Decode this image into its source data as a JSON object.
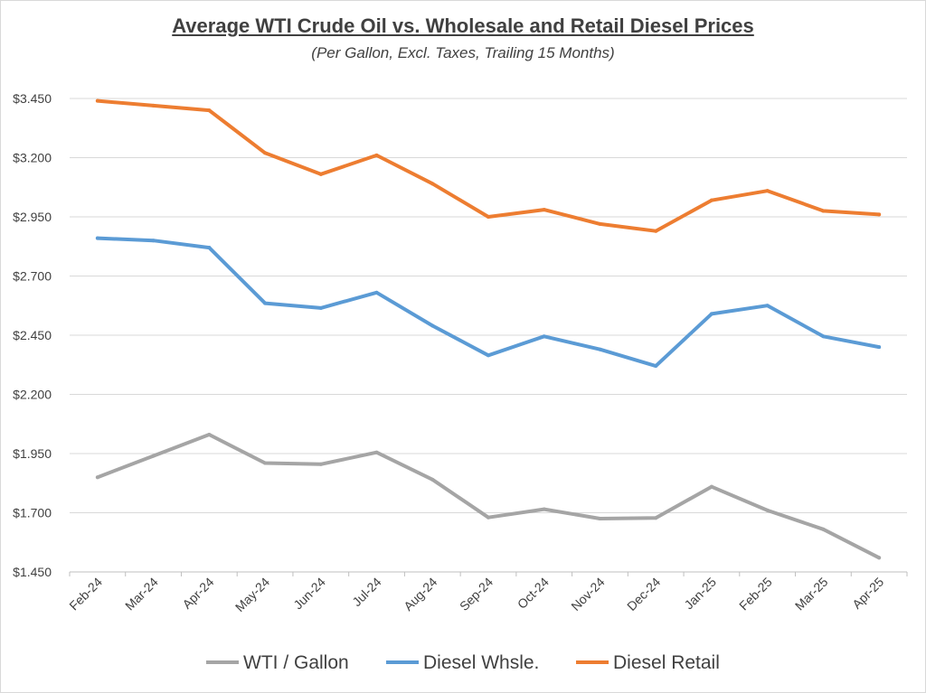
{
  "chart_data": {
    "type": "line",
    "title": "Average WTI Crude Oil vs. Wholesale and Retail Diesel Prices",
    "subtitle": "(Per Gallon, Excl. Taxes, Trailing 15 Months)",
    "categories": [
      "Feb-24",
      "Mar-24",
      "Apr-24",
      "May-24",
      "Jun-24",
      "Jul-24",
      "Aug-24",
      "Sep-24",
      "Oct-24",
      "Nov-24",
      "Dec-24",
      "Jan-25",
      "Feb-25",
      "Mar-25",
      "Apr-25"
    ],
    "yticks": [
      "$1.450",
      "$1.700",
      "$1.950",
      "$2.200",
      "$2.450",
      "$2.700",
      "$2.950",
      "$3.200",
      "$3.450"
    ],
    "ylim": [
      1.45,
      3.45
    ],
    "grid": true,
    "legend_position": "bottom",
    "series": [
      {
        "name": "WTI / Gallon",
        "color": "#a5a5a5",
        "values": [
          1.85,
          1.94,
          2.03,
          1.91,
          1.905,
          1.955,
          1.84,
          1.68,
          1.715,
          1.675,
          1.678,
          1.81,
          1.71,
          1.63,
          1.51
        ]
      },
      {
        "name": "Diesel Whsle.",
        "color": "#5b9bd5",
        "values": [
          2.86,
          2.85,
          2.82,
          2.585,
          2.565,
          2.63,
          2.49,
          2.365,
          2.445,
          2.39,
          2.32,
          2.54,
          2.575,
          2.445,
          2.4
        ]
      },
      {
        "name": "Diesel Retail",
        "color": "#ed7d31",
        "values": [
          3.44,
          3.42,
          3.4,
          3.22,
          3.13,
          3.21,
          3.09,
          2.95,
          2.98,
          2.92,
          2.89,
          3.02,
          3.06,
          2.975,
          2.96
        ]
      }
    ]
  }
}
